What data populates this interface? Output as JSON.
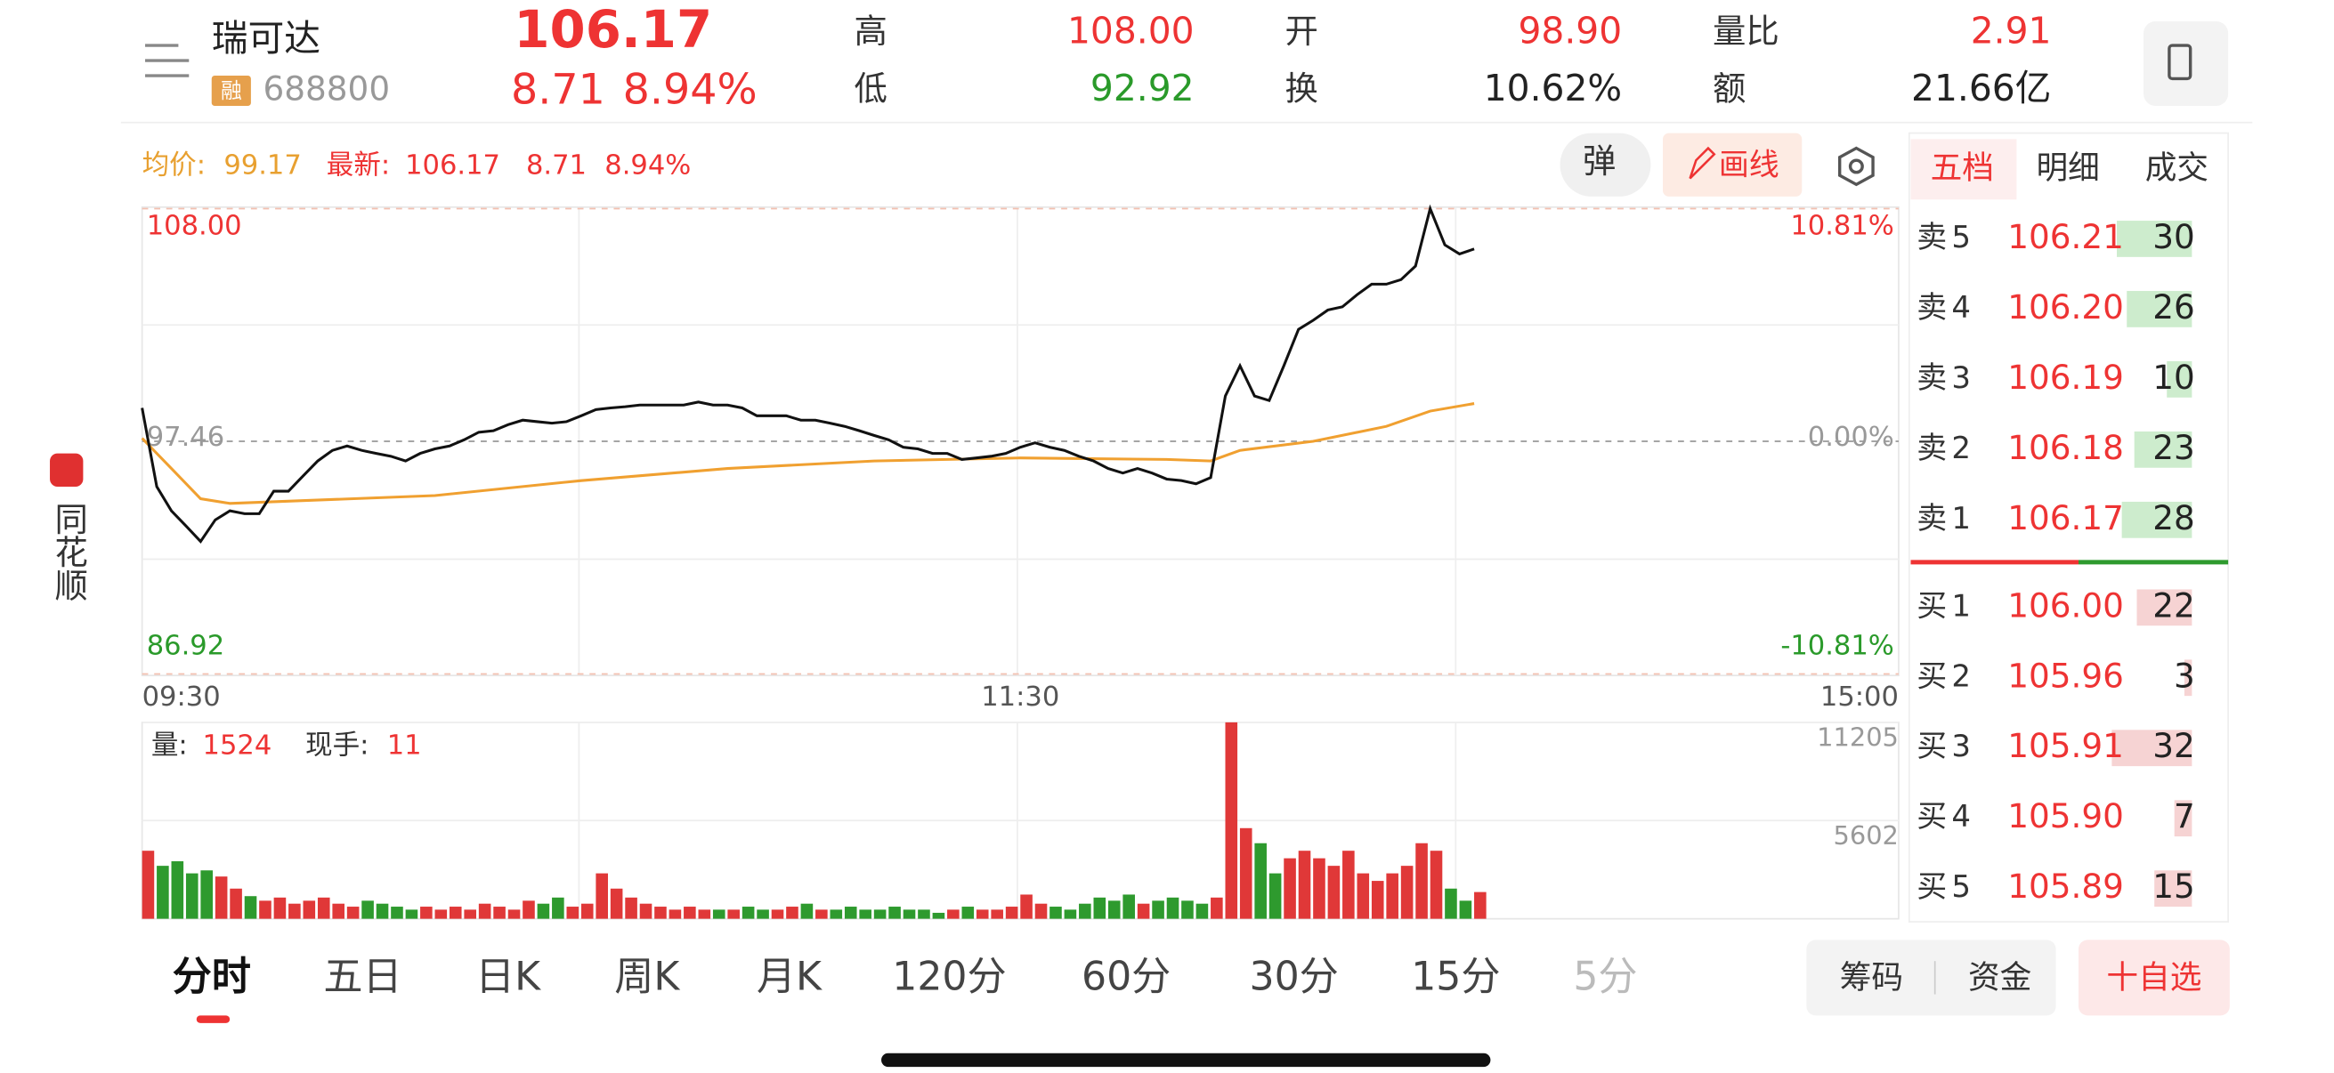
{
  "header": {
    "name": "瑞可达",
    "badge": "融",
    "code": "688800",
    "price": "106.17",
    "change": "8.71",
    "change_pct": "8.94%",
    "stats": [
      {
        "label": "高",
        "value": "108.00"
      },
      {
        "label": "低",
        "value": "92.92"
      },
      {
        "label": "开",
        "value": "98.90"
      },
      {
        "label": "换",
        "value": "10.62%"
      },
      {
        "label": "量比",
        "value": "2.91"
      },
      {
        "label": "额",
        "value": "21.66亿"
      }
    ]
  },
  "side_brand": "同花顺",
  "info": {
    "avg_label": "均价:",
    "avg": "99.17",
    "latest_label": "最新:",
    "latest": "106.17",
    "change": "8.71",
    "change_pct": "8.94%",
    "popup_button": "弹",
    "draw_button": "画线"
  },
  "volume_info": {
    "vol_label": "量:",
    "vol": "1524",
    "hand_label": "现手:",
    "hand": "11"
  },
  "order_tabs": [
    "五档",
    "明细",
    "成交"
  ],
  "order_book": {
    "sell": [
      {
        "label": "卖5",
        "price": "106.21",
        "volume": 30
      },
      {
        "label": "卖4",
        "price": "106.20",
        "volume": 26
      },
      {
        "label": "卖3",
        "price": "106.19",
        "volume": 10
      },
      {
        "label": "卖2",
        "price": "106.18",
        "volume": 23
      },
      {
        "label": "卖1",
        "price": "106.17",
        "volume": 28
      }
    ],
    "buy": [
      {
        "label": "买1",
        "price": "106.00",
        "volume": 22
      },
      {
        "label": "买2",
        "price": "105.96",
        "volume": 3
      },
      {
        "label": "买3",
        "price": "105.91",
        "volume": 32
      },
      {
        "label": "买4",
        "price": "105.90",
        "volume": 7
      },
      {
        "label": "买5",
        "price": "105.89",
        "volume": 15
      }
    ]
  },
  "chart_data": [
    {
      "type": "line",
      "xlim": [
        0,
        240
      ],
      "xticks": [
        {
          "value": 0,
          "label": "09:30"
        },
        {
          "value": 120,
          "label": "11:30"
        },
        {
          "value": 240,
          "label": "15:00"
        }
      ],
      "ylim": [
        86.92,
        108
      ],
      "yticks": [
        86.92,
        97.46,
        {
          "value": 108,
          "label": "108.00"
        }
      ],
      "y2lim": [
        -10.81,
        10.81
      ],
      "y2ticks": [
        {
          "value": -10.81,
          "label": "-10.81%"
        },
        {
          "value": 0,
          "label": "0.00%"
        },
        {
          "value": 10.81,
          "label": "10.81%"
        }
      ],
      "series": [
        {
          "name": "最新",
          "color": "#111111",
          "x": [
            0,
            2,
            4,
            6,
            8,
            10,
            12,
            14,
            16,
            18,
            20,
            22,
            24,
            26,
            28,
            30,
            32,
            34,
            36,
            38,
            40,
            42,
            44,
            46,
            48,
            50,
            52,
            54,
            56,
            58,
            60,
            62,
            64,
            66,
            68,
            70,
            72,
            74,
            76,
            78,
            80,
            82,
            84,
            86,
            88,
            90,
            92,
            94,
            96,
            98,
            100,
            102,
            104,
            106,
            108,
            110,
            112,
            114,
            116,
            118,
            120,
            122,
            124,
            126,
            128,
            130,
            132,
            134,
            136,
            138,
            140,
            142,
            144,
            146,
            148,
            150,
            152,
            154,
            156,
            158,
            160,
            162,
            164,
            166,
            168,
            170,
            172,
            174,
            176,
            178,
            180,
            182
          ],
          "values": [
            98.97,
            95.41,
            94.31,
            93.63,
            92.92,
            93.9,
            94.31,
            94.18,
            94.18,
            95.2,
            95.2,
            95.89,
            96.57,
            97.05,
            97.25,
            97.05,
            96.91,
            96.78,
            96.57,
            96.91,
            97.12,
            97.25,
            97.53,
            97.87,
            97.94,
            98.21,
            98.42,
            98.35,
            98.28,
            98.35,
            98.62,
            98.9,
            98.97,
            99.03,
            99.1,
            99.1,
            99.1,
            99.1,
            99.24,
            99.1,
            99.1,
            98.97,
            98.62,
            98.62,
            98.62,
            98.42,
            98.42,
            98.28,
            98.14,
            97.94,
            97.73,
            97.53,
            97.19,
            97.12,
            96.91,
            96.91,
            96.64,
            96.71,
            96.78,
            96.91,
            97.19,
            97.39,
            97.19,
            97.05,
            96.78,
            96.57,
            96.23,
            96.02,
            96.23,
            96.02,
            95.75,
            95.68,
            95.54,
            95.82,
            99.51,
            100.88,
            99.51,
            99.31,
            100.88,
            102.53,
            102.94,
            103.41,
            103.55,
            104.1,
            104.58,
            104.58,
            104.78,
            105.4,
            108.0,
            106.36,
            105.95,
            106.17
          ]
        },
        {
          "name": "均价",
          "color": "#f0a030",
          "x": [
            0,
            4,
            8,
            12,
            40,
            60,
            80,
            100,
            120,
            140,
            146,
            150,
            160,
            170,
            176,
            182
          ],
          "values": [
            97.6,
            96.23,
            94.86,
            94.65,
            95.0,
            95.68,
            96.23,
            96.57,
            96.71,
            96.64,
            96.57,
            97.05,
            97.46,
            98.14,
            98.83,
            99.17
          ]
        }
      ]
    },
    {
      "type": "bar",
      "xlim": [
        0,
        240
      ],
      "ylim": [
        0,
        11205
      ],
      "yticks": [
        5602,
        11205
      ],
      "up_color": "#e03838",
      "down_color": "#2e9a2e",
      "x": [
        0,
        2,
        4,
        6,
        8,
        10,
        12,
        14,
        16,
        18,
        20,
        22,
        24,
        26,
        28,
        30,
        32,
        34,
        36,
        38,
        40,
        42,
        44,
        46,
        48,
        50,
        52,
        54,
        56,
        58,
        60,
        62,
        64,
        66,
        68,
        70,
        72,
        74,
        76,
        78,
        80,
        82,
        84,
        86,
        88,
        90,
        92,
        94,
        96,
        98,
        100,
        102,
        104,
        106,
        108,
        110,
        112,
        114,
        116,
        118,
        120,
        122,
        124,
        126,
        128,
        130,
        132,
        134,
        136,
        138,
        140,
        142,
        144,
        146,
        148,
        150,
        152,
        154,
        156,
        158,
        160,
        162,
        164,
        166,
        168,
        170,
        172,
        174,
        176,
        178,
        180,
        182
      ],
      "values": [
        3880,
        3020,
        3280,
        2590,
        2760,
        2410,
        1720,
        1290,
        1030,
        1210,
        860,
        1030,
        1210,
        860,
        690,
        1030,
        860,
        690,
        520,
        690,
        520,
        690,
        520,
        860,
        690,
        520,
        1030,
        860,
        1210,
        690,
        860,
        2590,
        1720,
        1210,
        860,
        690,
        520,
        690,
        520,
        520,
        520,
        690,
        520,
        520,
        690,
        860,
        520,
        520,
        690,
        520,
        520,
        690,
        520,
        520,
        340,
        520,
        690,
        520,
        520,
        690,
        1380,
        860,
        690,
        520,
        860,
        1210,
        1030,
        1380,
        860,
        1030,
        1210,
        1030,
        860,
        1210,
        11205,
        5170,
        4310,
        2590,
        3450,
        3880,
        3450,
        3020,
        3880,
        2590,
        2160,
        2590,
        3020,
        4310,
        3880,
        1720,
        1030,
        1524
      ]
    }
  ],
  "tabs": [
    "分时",
    "五日",
    "日K",
    "周K",
    "月K",
    "120分",
    "60分",
    "30分",
    "15分",
    "5分"
  ],
  "buttons": [
    "筹码",
    "资金",
    "十自选"
  ]
}
